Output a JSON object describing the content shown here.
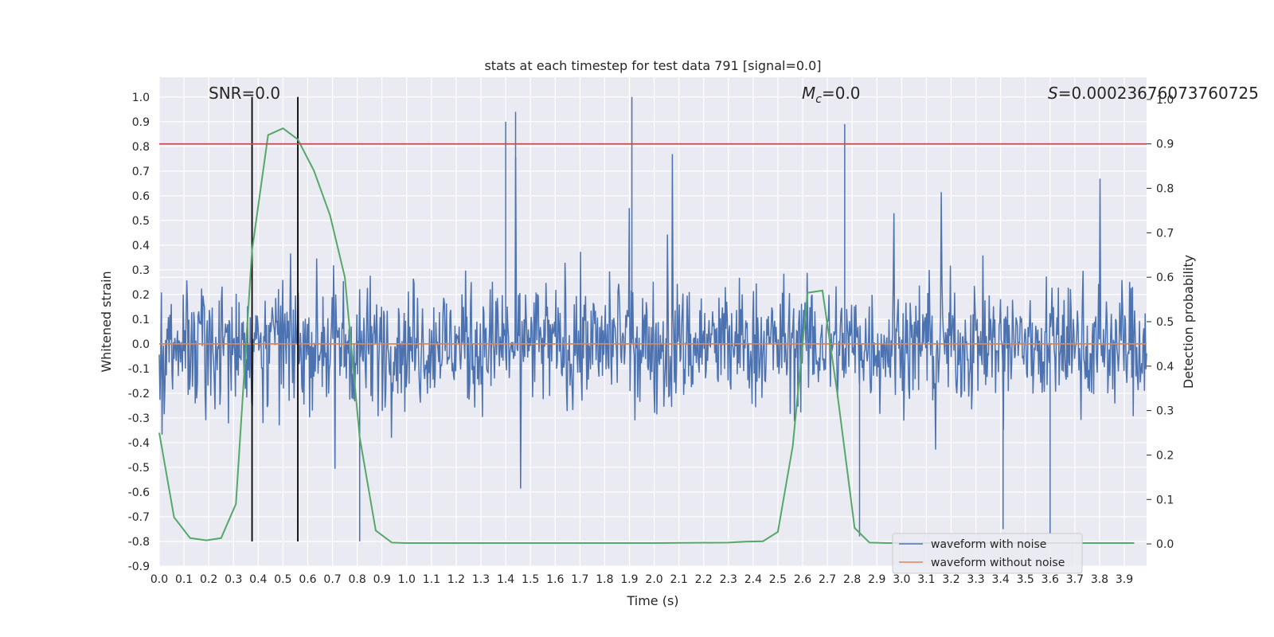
{
  "chart_data": {
    "type": "line",
    "title": "stats at each timestep for test data 791 [signal=0.0]",
    "xlabel": "Time (s)",
    "ylabel_left": "Whitened strain",
    "ylabel_right": "Detection probability",
    "xlim": [
      0.0,
      3.99
    ],
    "ylim_left": [
      -0.9,
      1.08
    ],
    "ylim_right": [
      -0.05,
      1.05
    ],
    "x_ticks": [
      "0.0",
      "0.1",
      "0.2",
      "0.3",
      "0.4",
      "0.5",
      "0.6",
      "0.7",
      "0.8",
      "0.9",
      "1.0",
      "1.1",
      "1.2",
      "1.3",
      "1.4",
      "1.5",
      "1.6",
      "1.7",
      "1.8",
      "1.9",
      "2.0",
      "2.1",
      "2.2",
      "2.3",
      "2.4",
      "2.5",
      "2.6",
      "2.7",
      "2.8",
      "2.9",
      "3.0",
      "3.1",
      "3.2",
      "3.3",
      "3.4",
      "3.5",
      "3.6",
      "3.7",
      "3.8",
      "3.9"
    ],
    "y_ticks_left": [
      "-0.9",
      "-0.8",
      "-0.7",
      "-0.6",
      "-0.5",
      "-0.4",
      "-0.3",
      "-0.2",
      "-0.1",
      "0.0",
      "0.1",
      "0.2",
      "0.3",
      "0.4",
      "0.5",
      "0.6",
      "0.7",
      "0.8",
      "0.9",
      "1.0"
    ],
    "y_ticks_right": [
      "0.0",
      "0.1",
      "0.2",
      "0.3",
      "0.4",
      "0.5",
      "0.6",
      "0.7",
      "0.8",
      "0.9",
      "1.0"
    ],
    "annotations": {
      "snr": "SNR=0.0",
      "mc": "=0.0",
      "mc_symbol": "M",
      "mc_sub": "c",
      "s": "=0.00023676073760725",
      "s_symbol": "S"
    },
    "legend": {
      "position": "lower-right",
      "entries": [
        {
          "label": "waveform with noise",
          "color": "#4c72b0"
        },
        {
          "label": "waveform without noise",
          "color": "#dd8452"
        }
      ]
    },
    "threshold_right": 0.9,
    "window_lines_x": [
      0.375,
      0.56
    ],
    "series": [
      {
        "name": "waveform with noise",
        "color": "#4c72b0",
        "amplitude_envelope_left": [
          -0.8,
          1.0
        ],
        "noise_seed": 791,
        "samples": 1400
      },
      {
        "name": "waveform without noise",
        "color": "#dd8452",
        "x": [
          0.0,
          3.99
        ],
        "y": [
          0.0,
          0.0
        ]
      },
      {
        "name": "detection probability",
        "axis": "right",
        "color": "#55a868",
        "x": [
          0.0,
          0.06,
          0.125,
          0.19,
          0.25,
          0.31,
          0.375,
          0.44,
          0.5,
          0.56,
          0.625,
          0.69,
          0.75,
          0.81,
          0.875,
          0.94,
          1.0,
          1.5,
          2.0,
          2.3,
          2.37,
          2.44,
          2.5,
          2.56,
          2.62,
          2.68,
          2.74,
          2.81,
          2.87,
          2.94,
          3.5,
          3.94
        ],
        "y": [
          0.25,
          0.06,
          0.013,
          0.008,
          0.013,
          0.09,
          0.66,
          0.92,
          0.935,
          0.91,
          0.84,
          0.74,
          0.6,
          0.24,
          0.03,
          0.003,
          0.002,
          0.002,
          0.002,
          0.003,
          0.005,
          0.006,
          0.027,
          0.22,
          0.565,
          0.57,
          0.34,
          0.036,
          0.003,
          0.002,
          0.002,
          0.002
        ]
      },
      {
        "name": "threshold",
        "axis": "right",
        "color": "#c44e52",
        "y": 0.9
      }
    ],
    "grid": true
  }
}
